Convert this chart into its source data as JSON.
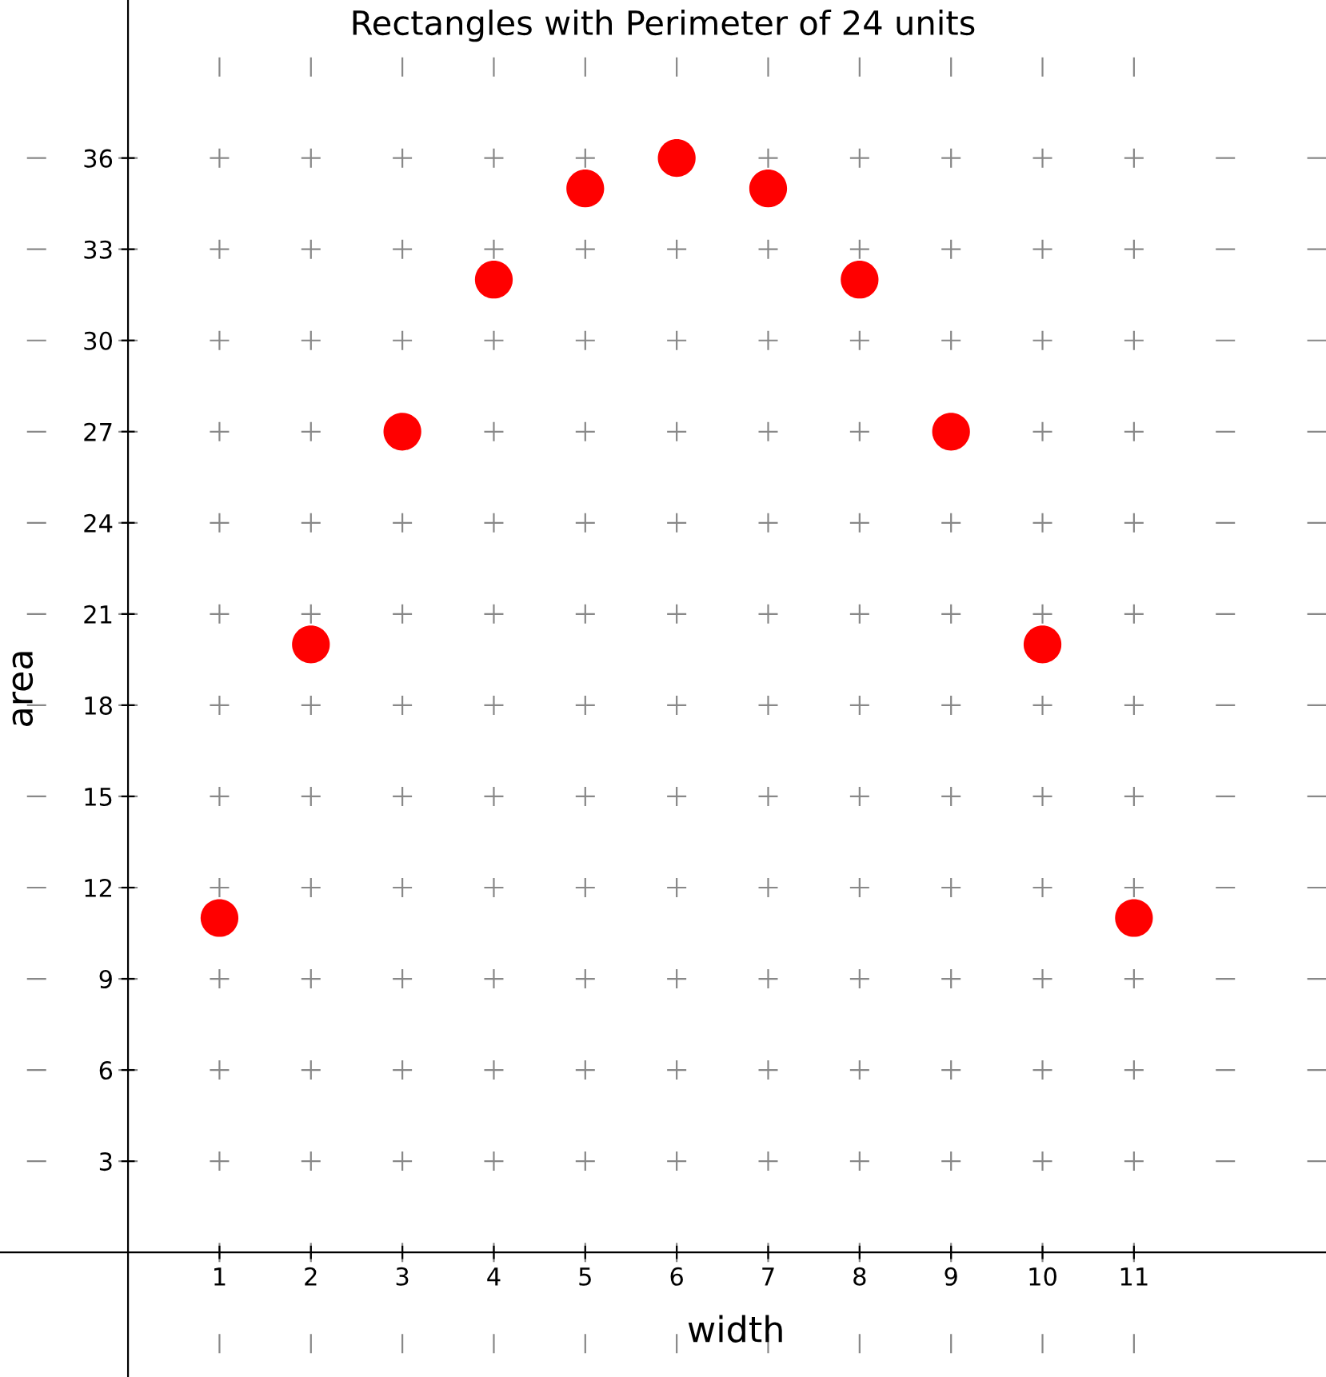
{
  "chart_data": {
    "type": "scatter",
    "title": "Rectangles with Perimeter of 24 units",
    "xlabel": "width",
    "ylabel": "area",
    "x": [
      1,
      2,
      3,
      4,
      5,
      6,
      7,
      8,
      9,
      10,
      11
    ],
    "series": [
      {
        "color": "#ff0000",
        "values": [
          11,
          20,
          27,
          32,
          35,
          36,
          35,
          32,
          27,
          20,
          11
        ]
      }
    ],
    "marker": "circle",
    "grid": true,
    "xlim": [
      -1.4,
      13.1
    ],
    "ylim": [
      -4.1,
      41.2
    ],
    "xticks": [
      1,
      2,
      3,
      4,
      5,
      6,
      7,
      8,
      9,
      10,
      11
    ],
    "yticks": [
      3,
      6,
      9,
      12,
      15,
      18,
      21,
      24,
      27,
      30,
      33,
      36
    ]
  }
}
